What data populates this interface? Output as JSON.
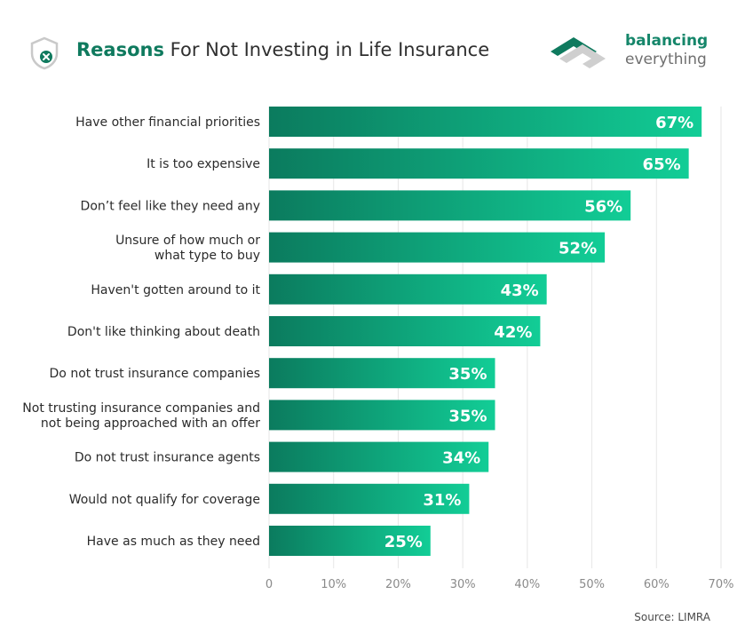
{
  "header": {
    "title_bold": "Reasons",
    "title_rest": " For Not Investing in Life Insurance",
    "icon": "shield-x-icon"
  },
  "brand": {
    "line1": "balancing",
    "line2": "everything",
    "logo": "balancing-everything-logo",
    "color_dark": "#0f7a5e",
    "color_light": "#7ee2c3"
  },
  "source": "Source: LIMRA",
  "colors": {
    "bar_start": "#0b7b5e",
    "bar_end": "#12cd96",
    "grid": "#e6e6e6",
    "title_accent": "#0f7a5e"
  },
  "chart_data": {
    "type": "bar",
    "orientation": "horizontal",
    "categories": [
      [
        "Have other financial priorities"
      ],
      [
        "It is too expensive"
      ],
      [
        "Don’t feel like they need any"
      ],
      [
        "Unsure of how much or",
        "what type to buy"
      ],
      [
        "Haven't gotten around to it"
      ],
      [
        "Don't like thinking about death"
      ],
      [
        "Do not trust  insurance companies"
      ],
      [
        "Not trusting insurance companies and",
        "not being approached with an offer"
      ],
      [
        "Do not trust insurance agents"
      ],
      [
        "Would not qualify for coverage"
      ],
      [
        "Have as much as they need"
      ]
    ],
    "values": [
      67,
      65,
      56,
      52,
      43,
      42,
      35,
      35,
      34,
      31,
      25
    ],
    "value_labels": [
      "67%",
      "65%",
      "56%",
      "52%",
      "43%",
      "42%",
      "35%",
      "35%",
      "34%",
      "31%",
      "25%"
    ],
    "xlim": [
      0,
      70
    ],
    "xticks": [
      0,
      10,
      20,
      30,
      40,
      50,
      60,
      70
    ],
    "xtick_labels": [
      "0",
      "10%",
      "20%",
      "30%",
      "40%",
      "50%",
      "60%",
      "70%"
    ],
    "grid": true
  }
}
